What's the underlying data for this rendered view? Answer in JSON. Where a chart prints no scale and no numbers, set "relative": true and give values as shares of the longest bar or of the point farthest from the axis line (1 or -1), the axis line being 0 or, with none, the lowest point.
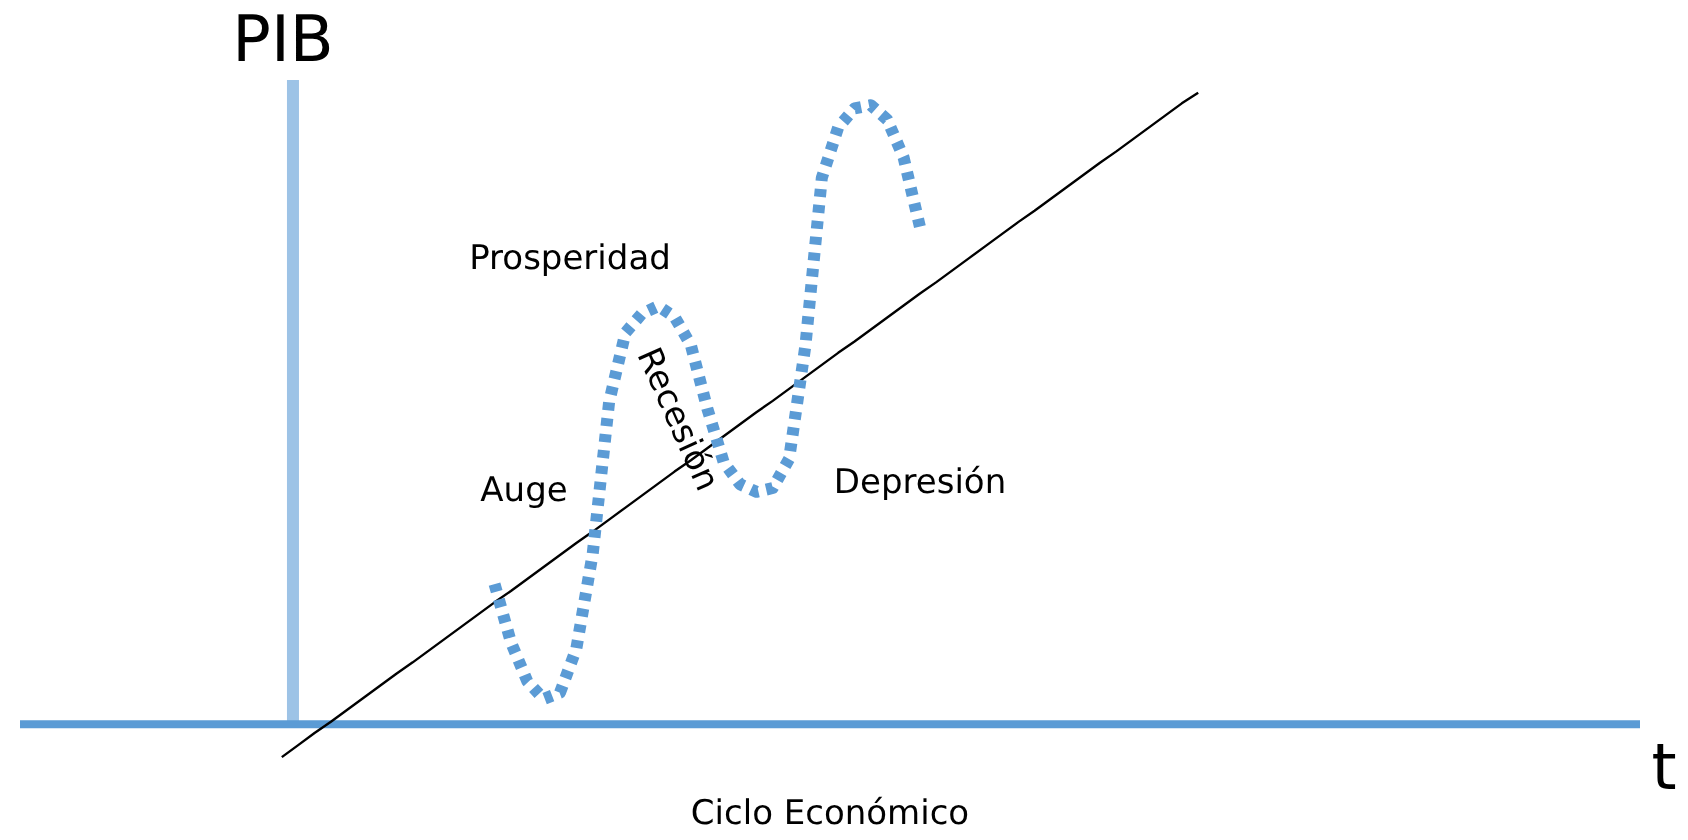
{
  "chart_data": {
    "type": "line",
    "relative": true,
    "title": "Ciclo Económico",
    "xlabel": "t",
    "ylabel": "PIB",
    "legend": false,
    "marker": "none",
    "categories": [
      null,
      null,
      null,
      null,
      null,
      null,
      null,
      null,
      null,
      null,
      null,
      null,
      null,
      null,
      null,
      null,
      null,
      null,
      null,
      null,
      null,
      null,
      null,
      null,
      null,
      null,
      null,
      null,
      null,
      null,
      null,
      null,
      null,
      null,
      null,
      null,
      null,
      null,
      null,
      null,
      null,
      null,
      null,
      null,
      null,
      null,
      null,
      null,
      null,
      null,
      null,
      null,
      null,
      null,
      null,
      null,
      null,
      null,
      null,
      null,
      null,
      null,
      null,
      null,
      null,
      null,
      null,
      null,
      null,
      null,
      null,
      null,
      null,
      null,
      null,
      null,
      null,
      null,
      null,
      null,
      null,
      null,
      null,
      null,
      null,
      null,
      null,
      null,
      null,
      null,
      null,
      null,
      null,
      null,
      null,
      null,
      null,
      null,
      null,
      null
    ],
    "series": [
      {
        "color": "#5b9bd5",
        "line_style": "dotted",
        "values": [
          null,
          null,
          null,
          null,
          null,
          null,
          null,
          null,
          null,
          null,
          null,
          null,
          null,
          null,
          null,
          null,
          null,
          null,
          null,
          null,
          null,
          null,
          null,
          null,
          null,
          null,
          null,
          null,
          null,
          0.222,
          0.13,
          0.068,
          0.04,
          0.05,
          0.12,
          0.27,
          0.51,
          0.62,
          0.65,
          0.662,
          0.645,
          0.6,
          0.5,
          0.415,
          0.38,
          0.368,
          0.374,
          0.42,
          0.6,
          0.865,
          0.945,
          0.975,
          0.98,
          0.957,
          0.897,
          0.787,
          null,
          null,
          null,
          null,
          null,
          null,
          null,
          null,
          null,
          null,
          null,
          null,
          null,
          null,
          null,
          null,
          null,
          null,
          null,
          null,
          null,
          null,
          null,
          null,
          null,
          null,
          null,
          null,
          null,
          null,
          null,
          null,
          null,
          null,
          null,
          null,
          null,
          null,
          null,
          null,
          null,
          null,
          null,
          null
        ]
      },
      {
        "color": "#000000",
        "line_style": "solid",
        "values": [
          null,
          null,
          null,
          null,
          null,
          null,
          null,
          null,
          null,
          null,
          null,
          null,
          null,
          null,
          null,
          null,
          -0.052,
          -0.033,
          -0.014,
          0.004,
          0.023,
          0.042,
          0.061,
          0.08,
          0.098,
          0.117,
          0.136,
          0.155,
          0.174,
          0.193,
          0.211,
          0.23,
          0.249,
          0.268,
          0.287,
          0.305,
          0.324,
          0.343,
          0.362,
          0.381,
          0.4,
          0.418,
          0.437,
          0.456,
          0.475,
          0.494,
          0.512,
          0.531,
          0.55,
          0.569,
          0.588,
          0.606,
          0.625,
          0.644,
          0.663,
          0.682,
          0.7,
          0.719,
          0.738,
          0.757,
          0.776,
          0.795,
          0.813,
          0.832,
          0.851,
          0.87,
          0.889,
          0.907,
          0.926,
          0.945,
          0.964,
          0.983,
          1.0,
          null,
          null,
          null,
          null,
          null,
          null,
          null,
          null,
          null,
          null,
          null,
          null,
          null,
          null,
          null,
          null,
          null,
          null,
          null,
          null,
          null,
          null,
          null,
          null,
          null,
          null,
          null
        ]
      }
    ],
    "ref_lines": [
      {
        "axis": "y",
        "value": 0,
        "color": "#5b9bd5"
      }
    ],
    "annotations": [
      "Prosperidad",
      "Recesión",
      "Auge",
      "Depresión"
    ]
  }
}
